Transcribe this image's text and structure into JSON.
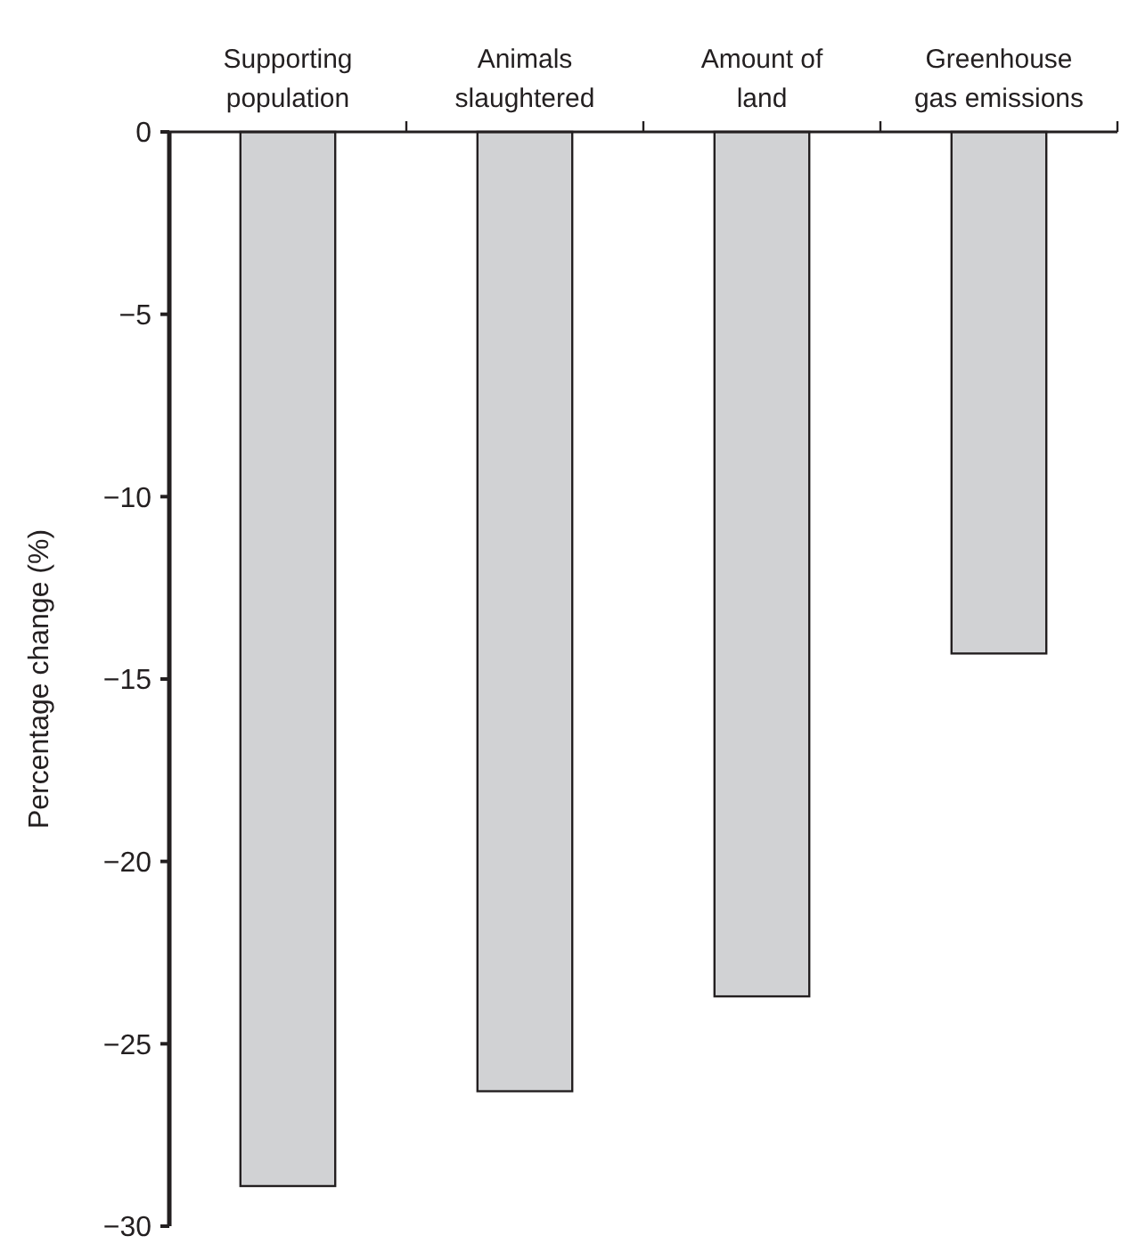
{
  "chart_data": {
    "type": "bar",
    "ylabel": "Percentage change (%)",
    "categories": [
      "Supporting population",
      "Animals slaughtered",
      "Amount of land",
      "Greenhouse gas emissions"
    ],
    "values": [
      -28.9,
      -26.3,
      -23.7,
      -14.3
    ],
    "color": "#d1d2d4",
    "ylim": [
      -30,
      0
    ],
    "yticks": [
      0,
      {
        "value": -5,
        "label": "−5"
      },
      {
        "value": -10,
        "label": "−10"
      },
      {
        "value": -15,
        "label": "−15"
      },
      {
        "value": -20,
        "label": "−20"
      },
      {
        "value": -25,
        "label": "−25"
      },
      {
        "value": -30,
        "label": "−30"
      }
    ],
    "grid": false
  }
}
